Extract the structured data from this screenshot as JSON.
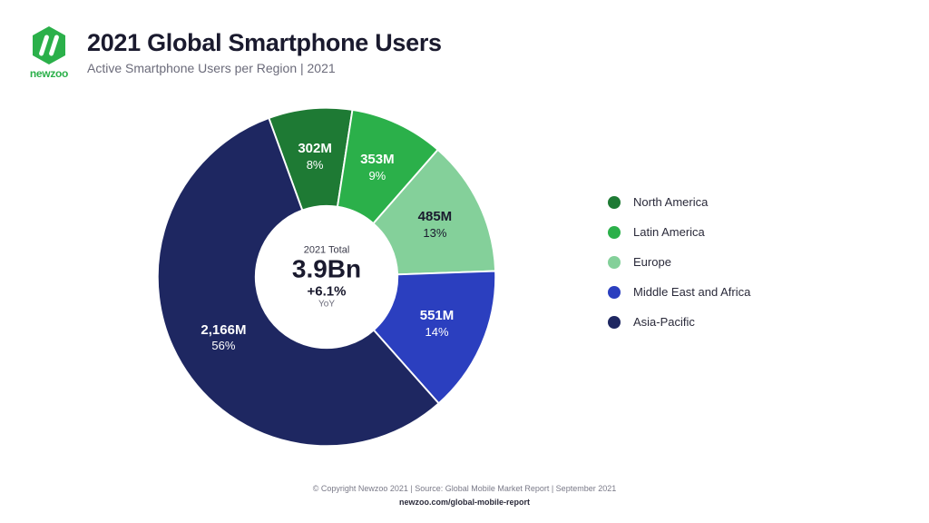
{
  "brand": {
    "name": "newzoo",
    "logo_color": "#2bb04a"
  },
  "header": {
    "title": "2021 Global Smartphone Users",
    "subtitle": "Active Smartphone Users per Region | 2021"
  },
  "chart": {
    "type": "donut",
    "background_color": "#ffffff",
    "inner_radius_ratio": 0.42,
    "slices": [
      {
        "label": "North America",
        "value_text": "302M",
        "pct_text": "8%",
        "value": 302,
        "pct": 8,
        "color": "#1e7a34",
        "text_color": "#ffffff"
      },
      {
        "label": "Latin America",
        "value_text": "353M",
        "pct_text": "9%",
        "value": 353,
        "pct": 9,
        "color": "#2bb04a",
        "text_color": "#ffffff"
      },
      {
        "label": "Europe",
        "value_text": "485M",
        "pct_text": "13%",
        "value": 485,
        "pct": 13,
        "color": "#84d09a",
        "text_color": "#1a1a2e"
      },
      {
        "label": "Middle East and Africa",
        "value_text": "551M",
        "pct_text": "14%",
        "value": 551,
        "pct": 14,
        "color": "#2b3fbf",
        "text_color": "#ffffff"
      },
      {
        "label": "Asia-Pacific",
        "value_text": "2,166M",
        "pct_text": "56%",
        "value": 2166,
        "pct": 56,
        "color": "#1e2761",
        "text_color": "#ffffff"
      }
    ],
    "center": {
      "pre": "2021 Total",
      "main": "3.9Bn",
      "yoy": "+6.1%",
      "post": "YoY"
    },
    "start_angle_deg": -20
  },
  "footer": {
    "copyright": "© Copyright Newzoo 2021 | Source: Global Mobile Market Report | September 2021",
    "url": "newzoo.com/global-mobile-report"
  }
}
